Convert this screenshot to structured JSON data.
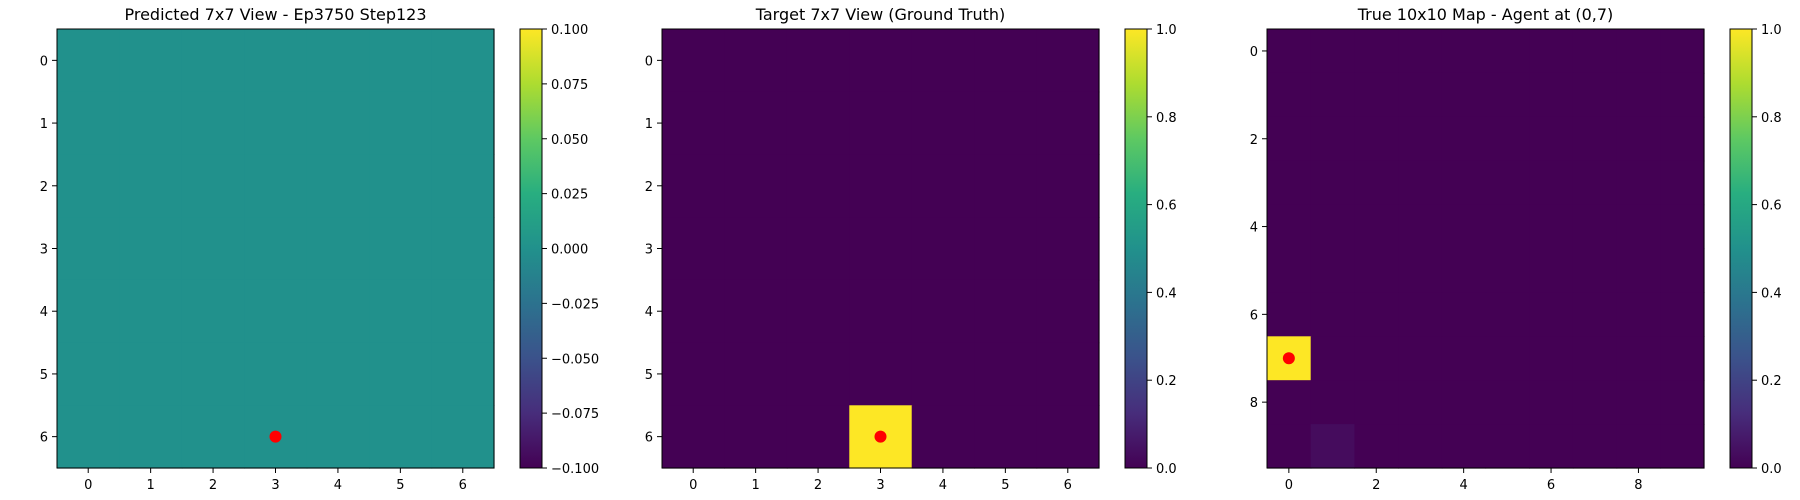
{
  "figure": {
    "background": "#ffffff"
  },
  "chart_data": [
    {
      "type": "heatmap",
      "title": "Predicted 7x7 View - Ep3750 Step123",
      "rows": 7,
      "cols": 7,
      "values": [
        [
          0,
          0,
          0,
          0,
          0,
          0,
          0
        ],
        [
          0,
          0,
          0,
          0,
          0,
          0,
          0
        ],
        [
          0,
          0,
          0,
          0,
          0,
          0,
          0
        ],
        [
          0,
          0,
          0,
          0,
          0,
          0,
          0
        ],
        [
          0,
          0,
          0,
          0,
          0,
          0,
          0
        ],
        [
          0,
          0,
          0,
          0,
          0,
          0,
          0
        ],
        [
          0,
          0,
          0,
          0,
          0,
          0,
          0
        ]
      ],
      "x_ticks": [
        0,
        1,
        2,
        3,
        4,
        5,
        6
      ],
      "y_ticks": [
        0,
        1,
        2,
        3,
        4,
        5,
        6
      ],
      "agent_marker": {
        "row": 6,
        "col": 3,
        "color": "#ff0000"
      },
      "colorbar": {
        "vmin": -0.1,
        "vmax": 0.1,
        "tick_values": [
          -0.1,
          -0.075,
          -0.05,
          -0.025,
          0,
          0.025,
          0.05,
          0.075,
          0.1
        ],
        "tick_labels": [
          "−0.100",
          "−0.075",
          "−0.050",
          "−0.025",
          "0.000",
          "0.025",
          "0.050",
          "0.075",
          "0.100"
        ]
      },
      "colormap": "viridis"
    },
    {
      "type": "heatmap",
      "title": "Target 7x7 View (Ground Truth)",
      "rows": 7,
      "cols": 7,
      "values": [
        [
          0,
          0,
          0,
          0,
          0,
          0,
          0
        ],
        [
          0,
          0,
          0,
          0,
          0,
          0,
          0
        ],
        [
          0,
          0,
          0,
          0,
          0,
          0,
          0
        ],
        [
          0,
          0,
          0,
          0,
          0,
          0,
          0
        ],
        [
          0,
          0,
          0,
          0,
          0,
          0,
          0
        ],
        [
          0,
          0,
          0,
          0,
          0,
          0,
          0
        ],
        [
          0,
          0,
          0,
          1,
          0,
          0,
          0
        ]
      ],
      "x_ticks": [
        0,
        1,
        2,
        3,
        4,
        5,
        6
      ],
      "y_ticks": [
        0,
        1,
        2,
        3,
        4,
        5,
        6
      ],
      "agent_marker": {
        "row": 6,
        "col": 3,
        "color": "#ff0000"
      },
      "colorbar": {
        "vmin": 0,
        "vmax": 1,
        "tick_values": [
          0,
          0.2,
          0.4,
          0.6,
          0.8,
          1.0
        ],
        "tick_labels": [
          "0.0",
          "0.2",
          "0.4",
          "0.6",
          "0.8",
          "1.0"
        ]
      },
      "colormap": "viridis"
    },
    {
      "type": "heatmap",
      "title": "True 10x10 Map - Agent at (0,7)",
      "rows": 10,
      "cols": 10,
      "values": [
        [
          0,
          0,
          0,
          0,
          0,
          0,
          0,
          0,
          0,
          0
        ],
        [
          0,
          0,
          0,
          0,
          0,
          0,
          0,
          0,
          0,
          0
        ],
        [
          0,
          0,
          0,
          0,
          0,
          0,
          0,
          0,
          0,
          0
        ],
        [
          0,
          0,
          0,
          0,
          0,
          0,
          0,
          0,
          0,
          0
        ],
        [
          0,
          0,
          0,
          0,
          0,
          0,
          0,
          0,
          0,
          0
        ],
        [
          0,
          0,
          0,
          0,
          0,
          0,
          0,
          0,
          0,
          0
        ],
        [
          0,
          0,
          0,
          0,
          0,
          0,
          0,
          0,
          0,
          0
        ],
        [
          1,
          0,
          0,
          0,
          0,
          0,
          0,
          0,
          0,
          0
        ],
        [
          0,
          0,
          0,
          0,
          0,
          0,
          0,
          0,
          0,
          0
        ],
        [
          0,
          0.03,
          0,
          0,
          0,
          0,
          0,
          0,
          0,
          0
        ]
      ],
      "x_ticks": [
        0,
        2,
        4,
        6,
        8
      ],
      "y_ticks": [
        0,
        2,
        4,
        6,
        8
      ],
      "agent_marker": {
        "row": 7,
        "col": 0,
        "color": "#ff0000"
      },
      "colorbar": {
        "vmin": 0,
        "vmax": 1,
        "tick_values": [
          0,
          0.2,
          0.4,
          0.6,
          0.8,
          1.0
        ],
        "tick_labels": [
          "0.0",
          "0.2",
          "0.4",
          "0.6",
          "0.8",
          "1.0"
        ]
      },
      "colormap": "viridis"
    }
  ]
}
